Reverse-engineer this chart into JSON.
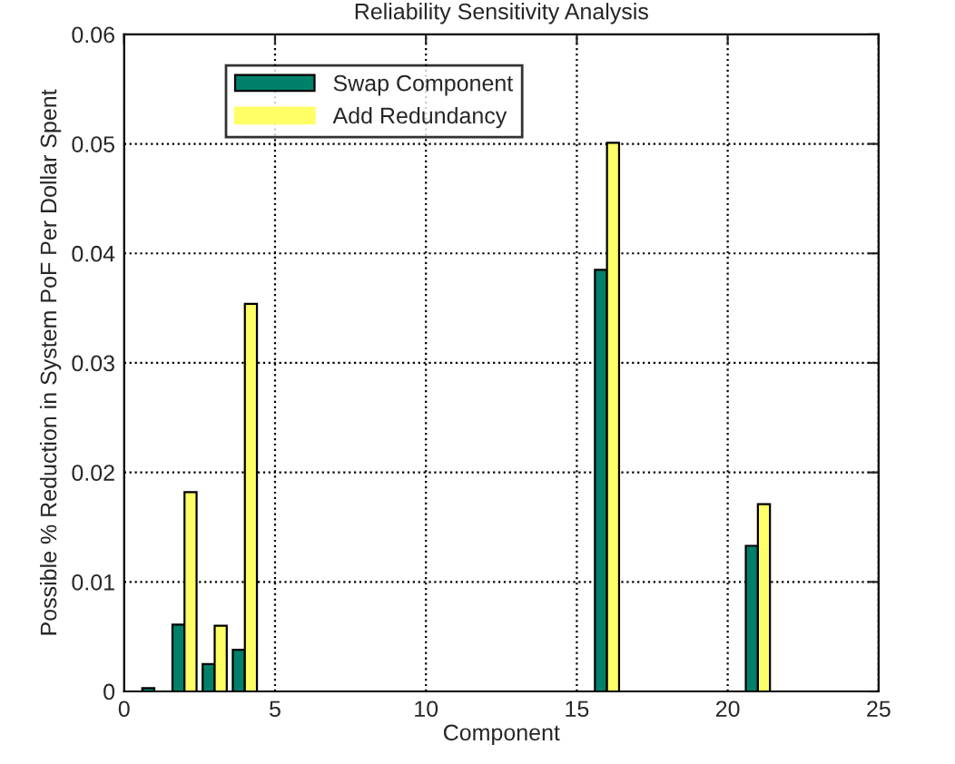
{
  "chart_data": {
    "type": "bar",
    "title": "Reliability Sensitivity Analysis",
    "xlabel": "Component",
    "ylabel": "Possible % Reduction in System PoF Per Dollar Spent",
    "x": [
      1,
      2,
      3,
      4,
      5,
      6,
      7,
      8,
      9,
      10,
      11,
      12,
      13,
      14,
      15,
      16,
      17,
      18,
      19,
      20,
      21,
      22,
      23,
      24
    ],
    "series": [
      {
        "name": "Swap Component",
        "color": "#00806a",
        "values": [
          0.0003,
          0.0061,
          0.0025,
          0.0038,
          0,
          0,
          0,
          0,
          0,
          0,
          0,
          0,
          0,
          0,
          0,
          0.0385,
          0,
          0,
          0,
          0,
          0.0133,
          0,
          0,
          0
        ]
      },
      {
        "name": "Add Redundancy",
        "color": "#ffff66",
        "values": [
          0,
          0.0182,
          0.006,
          0.0354,
          0,
          0,
          0,
          0,
          0,
          0,
          0,
          0,
          0,
          0,
          0,
          0.0501,
          0,
          0,
          0,
          0,
          0.0171,
          0,
          0,
          0
        ]
      }
    ],
    "xlim": [
      0,
      25
    ],
    "xticks": [
      0,
      5,
      10,
      15,
      20,
      25
    ],
    "ylim": [
      0,
      0.06
    ],
    "yticks": [
      0,
      0.01,
      0.02,
      0.03,
      0.04,
      0.05,
      0.06
    ],
    "grid": true,
    "legend": "top left"
  }
}
